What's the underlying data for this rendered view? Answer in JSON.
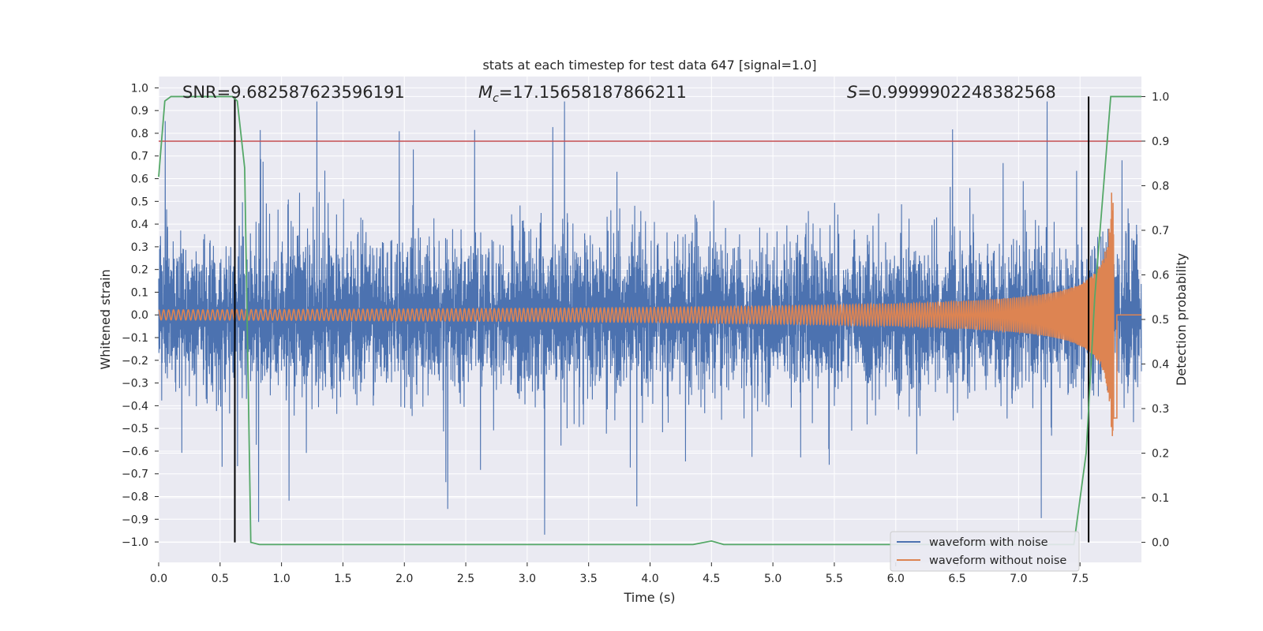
{
  "chart_data": {
    "type": "line",
    "title": "stats at each timestep for test data 647 [signal=1.0]",
    "xlabel": "Time (s)",
    "ylabel": "Whitened strain",
    "y2label": "Detection probability",
    "xlim": [
      0.0,
      8.0
    ],
    "ylim": [
      -1.09,
      1.05
    ],
    "y2lim": [
      -0.045,
      1.045
    ],
    "xticks": [
      "0.0",
      "0.5",
      "1.0",
      "1.5",
      "2.0",
      "2.5",
      "3.0",
      "3.5",
      "4.0",
      "4.5",
      "5.0",
      "5.5",
      "6.0",
      "6.5",
      "7.0",
      "7.5"
    ],
    "yticks": [
      "1.0",
      "0.9",
      "0.8",
      "0.7",
      "0.6",
      "0.5",
      "0.4",
      "0.3",
      "0.2",
      "0.1",
      "0.0",
      "−0.1",
      "−0.2",
      "−0.3",
      "−0.4",
      "−0.5",
      "−0.6",
      "−0.7",
      "−0.8",
      "−0.9",
      "−1.0"
    ],
    "y2ticks": [
      "1.0",
      "0.9",
      "0.8",
      "0.7",
      "0.6",
      "0.5",
      "0.4",
      "0.3",
      "0.2",
      "0.1",
      "0.0"
    ],
    "grid": true,
    "legend_position": "lower-right",
    "annotations": {
      "snr": "SNR=9.682587623596191",
      "mc_symbol": "M",
      "mc_sub": "c",
      "mc_value": "=17.15658187866211",
      "s_symbol": "S",
      "s_value": "=0.9999902248382568"
    },
    "series": [
      {
        "name": "waveform with noise",
        "color": "#4c72b0",
        "axis": "left",
        "kind": "noise",
        "x_range": [
          0.0,
          8.0
        ],
        "amplitude_envelope": [
          -0.98,
          0.94
        ]
      },
      {
        "name": "waveform without noise",
        "color": "#dd8452",
        "axis": "left",
        "kind": "chirp",
        "x_range": [
          0.0,
          7.8
        ],
        "peak_amplitude": 0.55,
        "merger_time": 7.78
      },
      {
        "name": "detection probability",
        "color": "#55a868",
        "axis": "right",
        "x": [
          0.0,
          0.05,
          0.1,
          0.6,
          0.64,
          0.7,
          0.75,
          0.82,
          4.35,
          4.5,
          4.6,
          7.45,
          7.55,
          7.62,
          7.75,
          8.0
        ],
        "y": [
          0.82,
          0.99,
          1.0,
          1.0,
          0.99,
          0.84,
          0.0,
          -0.005,
          -0.005,
          0.003,
          -0.005,
          -0.005,
          0.2,
          0.55,
          1.0,
          1.0
        ]
      }
    ],
    "threshold": {
      "value": 0.9,
      "axis": "right",
      "color": "#c44e52"
    },
    "vlines": {
      "x": [
        0.62,
        7.57
      ],
      "color": "#000000",
      "ymin": 0.0,
      "ymax": 1.0
    }
  }
}
